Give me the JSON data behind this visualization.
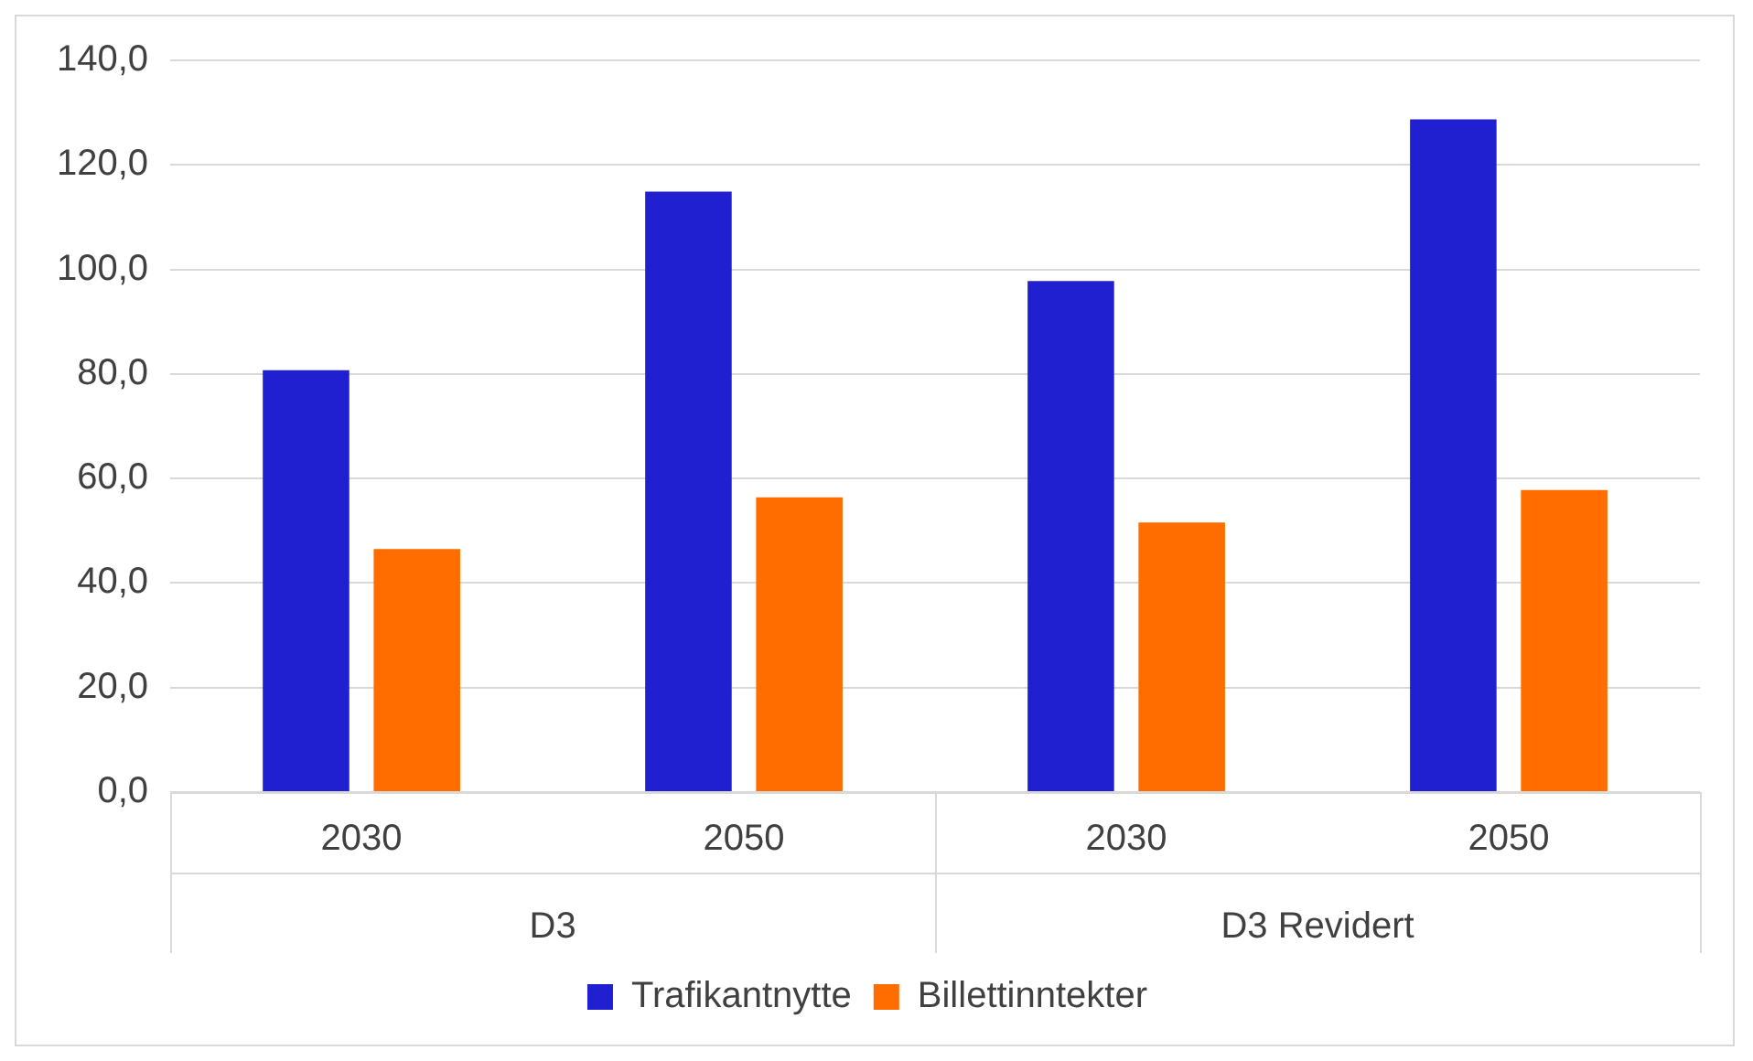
{
  "chart_data": {
    "type": "bar",
    "categories": [
      "2030",
      "2050",
      "2030",
      "2050"
    ],
    "series": [
      {
        "name": "Trafikantnytte",
        "color": "#2020d0",
        "values": [
          80.7,
          114.9,
          97.8,
          128.7
        ]
      },
      {
        "name": "Billettinntekter",
        "color": "#ff6d00",
        "values": [
          46.5,
          56.4,
          51.6,
          57.8
        ]
      }
    ],
    "annotations": [
      "D3",
      "D3 Revidert"
    ],
    "ylim": [
      0,
      140
    ],
    "yticks": [
      {
        "value": 0,
        "label": "0,0"
      },
      {
        "value": 20,
        "label": "20,0"
      },
      {
        "value": 40,
        "label": "40,0"
      },
      {
        "value": 60,
        "label": "60,0"
      },
      {
        "value": 80,
        "label": "80,0"
      },
      {
        "value": 100,
        "label": "100,0"
      },
      {
        "value": 120,
        "label": "120,0"
      },
      {
        "value": 140,
        "label": "140,0"
      }
    ],
    "grid": "y",
    "legend": "bottom"
  }
}
